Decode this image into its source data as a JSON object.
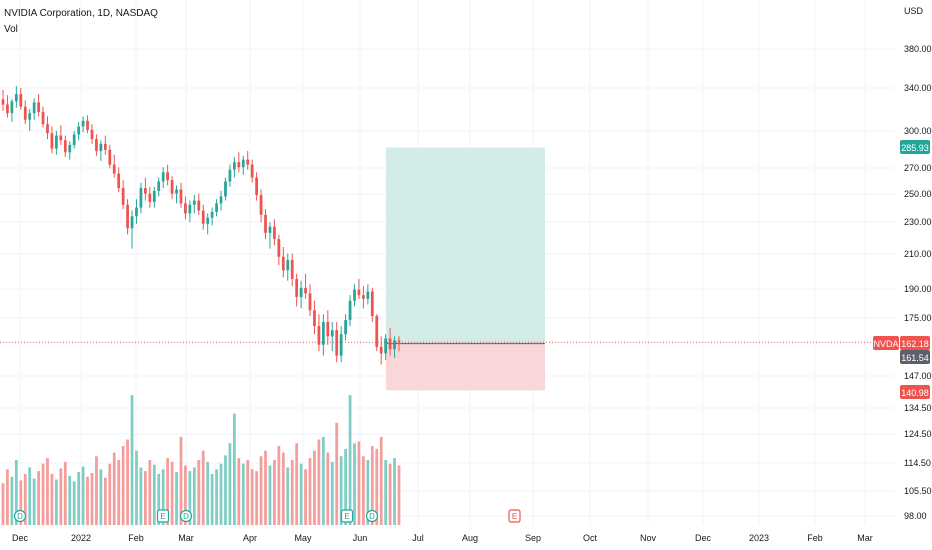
{
  "header": {
    "symbol_title": "NVIDIA Corporation, 1D, NASDAQ",
    "volume_label": "Vol",
    "currency": "USD"
  },
  "colors": {
    "up": "#26a69a",
    "down": "#ef5350",
    "vol_up": "#7fcdc4",
    "vol_down": "#f59d9a",
    "profit_zone": "#d3ece7",
    "loss_zone": "#f9d6d8",
    "price_line": "#ef5350",
    "grid": "#f0f3fa",
    "text": "#131722"
  },
  "chart_data": {
    "type": "candlestick",
    "y_axis": {
      "scale": "log",
      "tick_labels": [
        "380.00",
        "340.00",
        "300.00",
        "270.00",
        "250.00",
        "230.00",
        "210.00",
        "190.00",
        "175.00",
        "147.00",
        "134.50",
        "124.50",
        "114.50",
        "105.50",
        "98.00"
      ],
      "tick_values": [
        380,
        340,
        300,
        270,
        250,
        230,
        210,
        190,
        175,
        147,
        134.5,
        124.5,
        114.5,
        105.5,
        98
      ]
    },
    "x_axis": {
      "tick_labels": [
        "Dec",
        "2022",
        "Feb",
        "Mar",
        "Apr",
        "May",
        "Jun",
        "Jul",
        "Aug",
        "Sep",
        "Oct",
        "Nov",
        "Dec",
        "2023",
        "Feb",
        "Mar"
      ]
    },
    "price_labels": {
      "target": "285.93",
      "last": "162.18",
      "symbol": "NVDA",
      "entry": "161.54",
      "stop": "140.98"
    },
    "position": {
      "entry": 161.54,
      "target": 285.93,
      "stop": 140.98,
      "start_date": "Jun 21",
      "end_date": "Sep 14"
    },
    "last_price": 162.18,
    "series": [
      {
        "values": [
          [
            329,
            338,
            318,
            324
          ],
          [
            324,
            333,
            312,
            316
          ],
          [
            316,
            329,
            308,
            327
          ],
          [
            327,
            342,
            321,
            334
          ],
          [
            334,
            340,
            319,
            322
          ],
          [
            322,
            328,
            306,
            310
          ],
          [
            310,
            320,
            300,
            316
          ],
          [
            316,
            330,
            310,
            326
          ],
          [
            326,
            334,
            313,
            317
          ],
          [
            317,
            322,
            303,
            306
          ],
          [
            306,
            313,
            293,
            298
          ],
          [
            298,
            304,
            281,
            285
          ],
          [
            285,
            300,
            280,
            296
          ],
          [
            296,
            305,
            288,
            292
          ],
          [
            292,
            296,
            278,
            282
          ],
          [
            282,
            291,
            276,
            288
          ],
          [
            288,
            300,
            285,
            297
          ],
          [
            297,
            308,
            292,
            304
          ],
          [
            304,
            313,
            299,
            309
          ],
          [
            309,
            314,
            298,
            301
          ],
          [
            301,
            306,
            289,
            293
          ],
          [
            293,
            297,
            279,
            283
          ],
          [
            283,
            292,
            275,
            289
          ],
          [
            289,
            296,
            280,
            284
          ],
          [
            284,
            288,
            269,
            272
          ],
          [
            272,
            280,
            262,
            265
          ],
          [
            265,
            270,
            251,
            254
          ],
          [
            254,
            260,
            239,
            242
          ],
          [
            242,
            246,
            222,
            226
          ],
          [
            226,
            238,
            213,
            234
          ],
          [
            234,
            246,
            229,
            240
          ],
          [
            240,
            258,
            236,
            254
          ],
          [
            254,
            262,
            245,
            250
          ],
          [
            250,
            255,
            240,
            244
          ],
          [
            244,
            255,
            240,
            252
          ],
          [
            252,
            262,
            248,
            259
          ],
          [
            259,
            270,
            254,
            266
          ],
          [
            266,
            272,
            256,
            260
          ],
          [
            260,
            263,
            246,
            250
          ],
          [
            250,
            256,
            243,
            253
          ],
          [
            253,
            258,
            240,
            243
          ],
          [
            243,
            248,
            232,
            236
          ],
          [
            236,
            245,
            230,
            242
          ],
          [
            242,
            249,
            236,
            245
          ],
          [
            245,
            250,
            235,
            238
          ],
          [
            238,
            242,
            225,
            229
          ],
          [
            229,
            236,
            222,
            233
          ],
          [
            233,
            240,
            228,
            237
          ],
          [
            237,
            246,
            234,
            243
          ],
          [
            243,
            252,
            238,
            248
          ],
          [
            248,
            262,
            245,
            259
          ],
          [
            259,
            272,
            255,
            268
          ],
          [
            268,
            278,
            262,
            274
          ],
          [
            274,
            282,
            266,
            270
          ],
          [
            270,
            279,
            264,
            276
          ],
          [
            276,
            283,
            268,
            272
          ],
          [
            272,
            276,
            258,
            262
          ],
          [
            262,
            266,
            245,
            249
          ],
          [
            249,
            253,
            230,
            235
          ],
          [
            235,
            239,
            219,
            223
          ],
          [
            223,
            230,
            213,
            227
          ],
          [
            227,
            232,
            215,
            219
          ],
          [
            219,
            222,
            203,
            208
          ],
          [
            208,
            214,
            196,
            200
          ],
          [
            200,
            210,
            194,
            206
          ],
          [
            206,
            210,
            191,
            195
          ],
          [
            195,
            198,
            180,
            185
          ],
          [
            185,
            194,
            179,
            190
          ],
          [
            190,
            198,
            184,
            187
          ],
          [
            187,
            192,
            175,
            178
          ],
          [
            178,
            183,
            166,
            170
          ],
          [
            170,
            176,
            158,
            161
          ],
          [
            161,
            176,
            156,
            172
          ],
          [
            172,
            178,
            161,
            165
          ],
          [
            165,
            172,
            158,
            168
          ],
          [
            168,
            172,
            153,
            156
          ],
          [
            156,
            170,
            153,
            166
          ],
          [
            166,
            176,
            163,
            173
          ],
          [
            173,
            186,
            170,
            183
          ],
          [
            183,
            192,
            180,
            189
          ],
          [
            189,
            195,
            184,
            186
          ],
          [
            186,
            191,
            179,
            184
          ],
          [
            184,
            192,
            181,
            188
          ],
          [
            188,
            190,
            172,
            175
          ],
          [
            175,
            176,
            158,
            160
          ],
          [
            160,
            165,
            152,
            157
          ],
          [
            157,
            166,
            154,
            164
          ],
          [
            164,
            169,
            156,
            159
          ],
          [
            159,
            165,
            155,
            163
          ],
          [
            163,
            165,
            158,
            162.18
          ]
        ]
      },
      {
        "name": "Vol",
        "values": [
          45,
          60,
          52,
          70,
          48,
          55,
          62,
          50,
          58,
          66,
          72,
          55,
          49,
          61,
          68,
          53,
          47,
          57,
          63,
          52,
          56,
          74,
          60,
          51,
          66,
          78,
          70,
          85,
          92,
          140,
          80,
          62,
          58,
          70,
          65,
          55,
          60,
          72,
          68,
          57,
          95,
          64,
          58,
          62,
          70,
          80,
          68,
          55,
          60,
          66,
          75,
          88,
          120,
          72,
          66,
          70,
          60,
          58,
          74,
          80,
          64,
          70,
          85,
          78,
          62,
          70,
          88,
          66,
          60,
          72,
          80,
          92,
          95,
          78,
          68,
          110,
          74,
          82,
          140,
          88,
          90,
          74,
          70,
          85,
          82,
          95,
          70,
          66,
          72,
          64
        ]
      }
    ]
  }
}
